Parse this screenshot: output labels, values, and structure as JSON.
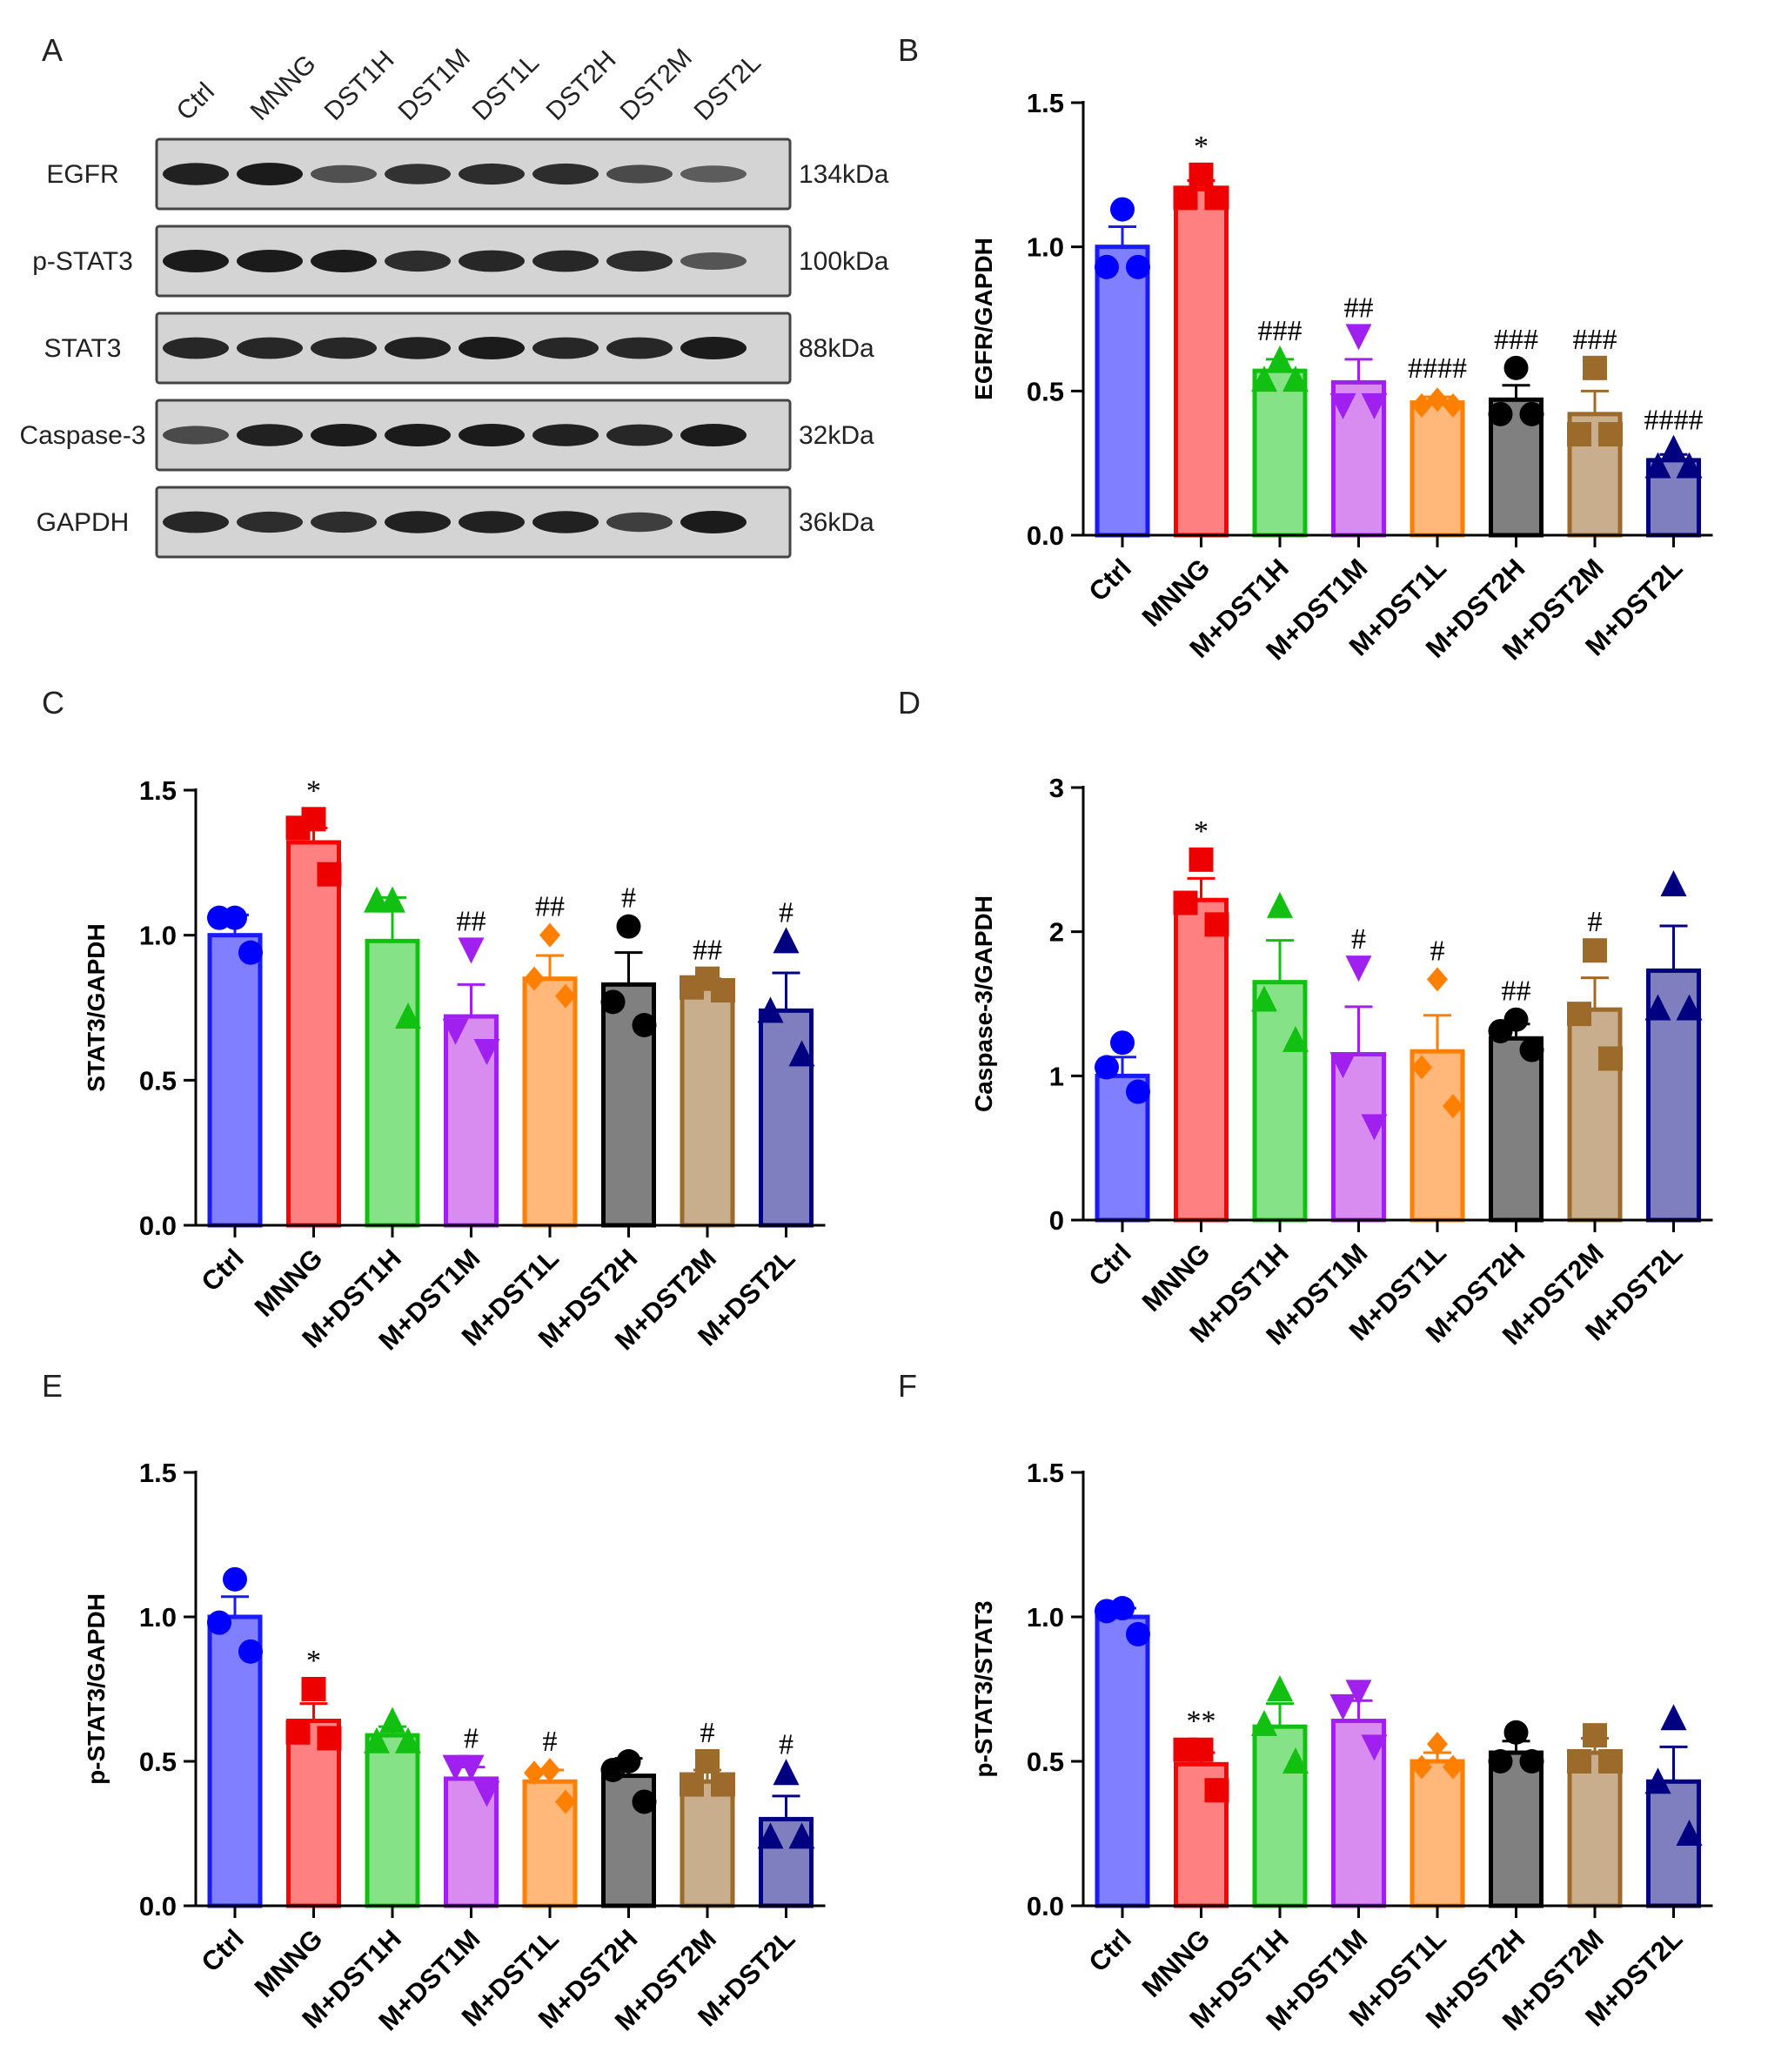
{
  "panel_labels": [
    "A",
    "B",
    "C",
    "D",
    "E",
    "F"
  ],
  "colors": {
    "Ctrl": {
      "fill": "#7f7fff",
      "edge": "#1a1aff",
      "point": "#0000ff"
    },
    "MNNG": {
      "fill": "#ff8080",
      "edge": "#ff0000",
      "point": "#ee0000"
    },
    "M+DST1H": {
      "fill": "#86e286",
      "edge": "#12c012",
      "point": "#12c012"
    },
    "M+DST1M": {
      "fill": "#d98cf0",
      "edge": "#a020f0",
      "point": "#a020f0"
    },
    "M+DST1L": {
      "fill": "#ffb87a",
      "edge": "#ff7f00",
      "point": "#ff7f00"
    },
    "M+DST2H": {
      "fill": "#808080",
      "edge": "#000000",
      "point": "#000000"
    },
    "M+DST2M": {
      "fill": "#c8ae8c",
      "edge": "#9c6a2b",
      "point": "#9c6a2b"
    },
    "M+DST2L": {
      "fill": "#7f7fbf",
      "edge": "#000080",
      "point": "#000080"
    }
  },
  "blot": {
    "lanes": [
      "Ctrl",
      "MNNG",
      "DST1H",
      "DST1M",
      "DST1L",
      "DST2H",
      "DST2M",
      "DST2L"
    ],
    "rows": [
      {
        "name": "EGFR",
        "size": "134kDa"
      },
      {
        "name": "p-STAT3",
        "size": "100kDa"
      },
      {
        "name": "STAT3",
        "size": "88kDa"
      },
      {
        "name": "Caspase-3",
        "size": "32kDa"
      },
      {
        "name": "GAPDH",
        "size": "36kDa"
      }
    ]
  },
  "chart_data": [
    {
      "panel": "B",
      "type": "bar",
      "categories": [
        "Ctrl",
        "MNNG",
        "M+DST1H",
        "M+DST1M",
        "M+DST1L",
        "M+DST2H",
        "M+DST2M",
        "M+DST2L"
      ],
      "markers": [
        "circle",
        "square",
        "triangle",
        "triangle-down",
        "diamond",
        "circle",
        "square",
        "triangle"
      ],
      "values": [
        1.0,
        1.2,
        0.57,
        0.53,
        0.46,
        0.47,
        0.42,
        0.26
      ],
      "sem": [
        0.07,
        0.03,
        0.04,
        0.08,
        0.02,
        0.05,
        0.08,
        0.02
      ],
      "points": [
        [
          1.13,
          0.93,
          0.93
        ],
        [
          1.25,
          1.17,
          1.17
        ],
        [
          0.61,
          0.54,
          0.54
        ],
        [
          0.69,
          0.45,
          0.45
        ],
        [
          0.47,
          0.45,
          0.45
        ],
        [
          0.58,
          0.42,
          0.42
        ],
        [
          0.58,
          0.35,
          0.35
        ],
        [
          0.3,
          0.24,
          0.24
        ]
      ],
      "sig": [
        "",
        "*",
        "###",
        "##",
        "####",
        "###",
        "###",
        "####"
      ],
      "ylabel": "EGFR/GAPDH",
      "ylim": [
        0,
        1.5
      ],
      "yticks": [
        0.0,
        0.5,
        1.0,
        1.5
      ],
      "ytick_labels": [
        "0.0",
        "0.5",
        "1.0",
        "1.5"
      ]
    },
    {
      "panel": "C",
      "type": "bar",
      "categories": [
        "Ctrl",
        "MNNG",
        "M+DST1H",
        "M+DST1M",
        "M+DST1L",
        "M+DST2H",
        "M+DST2M",
        "M+DST2L"
      ],
      "markers": [
        "circle",
        "square",
        "triangle",
        "triangle-down",
        "diamond",
        "circle",
        "square",
        "triangle"
      ],
      "values": [
        1.0,
        1.32,
        0.98,
        0.72,
        0.85,
        0.83,
        0.82,
        0.74
      ],
      "sem": [
        0.07,
        0.05,
        0.15,
        0.11,
        0.08,
        0.11,
        0.03,
        0.13
      ],
      "points": [
        [
          1.06,
          1.06,
          0.94
        ],
        [
          1.4,
          1.37,
          1.21
        ],
        [
          1.12,
          1.12,
          0.72
        ],
        [
          0.95,
          0.67,
          0.6
        ],
        [
          1.0,
          0.85,
          0.79
        ],
        [
          1.03,
          0.77,
          0.69
        ],
        [
          0.85,
          0.82,
          0.81
        ],
        [
          0.98,
          0.74,
          0.59
        ]
      ],
      "sig": [
        "",
        "*",
        "",
        "##",
        "##",
        "#",
        "##",
        "#"
      ],
      "ylabel": "STAT3/GAPDH",
      "ylim": [
        0,
        1.5
      ],
      "yticks": [
        0.0,
        0.5,
        1.0,
        1.5
      ],
      "ytick_labels": [
        "0.0",
        "0.5",
        "1.0",
        "1.5"
      ]
    },
    {
      "panel": "D",
      "type": "bar",
      "categories": [
        "Ctrl",
        "MNNG",
        "M+DST1H",
        "M+DST1M",
        "M+DST1L",
        "M+DST2H",
        "M+DST2M",
        "M+DST2L"
      ],
      "markers": [
        "circle",
        "square",
        "triangle",
        "triangle-down",
        "diamond",
        "circle",
        "square",
        "triangle"
      ],
      "values": [
        1.0,
        2.22,
        1.65,
        1.15,
        1.17,
        1.26,
        1.46,
        1.73
      ],
      "sem": [
        0.13,
        0.15,
        0.29,
        0.33,
        0.25,
        0.1,
        0.22,
        0.31
      ],
      "points": [
        [
          1.23,
          1.06,
          0.89
        ],
        [
          2.5,
          2.2,
          2.05
        ],
        [
          2.18,
          1.53,
          1.25
        ],
        [
          1.75,
          1.08,
          0.65
        ],
        [
          1.67,
          1.06,
          0.79
        ],
        [
          1.39,
          1.31,
          1.18
        ],
        [
          1.87,
          1.43,
          1.12
        ],
        [
          2.33,
          1.47,
          1.47
        ]
      ],
      "sig": [
        "",
        "*",
        "",
        "#",
        "#",
        "##",
        "#",
        ""
      ],
      "ylabel": "Caspase-3/GAPDH",
      "ylim": [
        0,
        3
      ],
      "yticks": [
        0,
        1,
        2,
        3
      ],
      "ytick_labels": [
        "0",
        "1",
        "2",
        "3"
      ]
    },
    {
      "panel": "E",
      "type": "bar",
      "categories": [
        "Ctrl",
        "MNNG",
        "M+DST1H",
        "M+DST1M",
        "M+DST1L",
        "M+DST2H",
        "M+DST2M",
        "M+DST2L"
      ],
      "markers": [
        "circle",
        "square",
        "triangle",
        "triangle-down",
        "diamond",
        "circle",
        "square",
        "triangle"
      ],
      "values": [
        1.0,
        0.64,
        0.59,
        0.44,
        0.43,
        0.45,
        0.43,
        0.3
      ],
      "sem": [
        0.07,
        0.06,
        0.03,
        0.04,
        0.04,
        0.06,
        0.04,
        0.08
      ],
      "points": [
        [
          1.13,
          0.98,
          0.88
        ],
        [
          0.75,
          0.6,
          0.58
        ],
        [
          0.64,
          0.57,
          0.57
        ],
        [
          0.48,
          0.48,
          0.39
        ],
        [
          0.47,
          0.46,
          0.36
        ],
        [
          0.5,
          0.47,
          0.36
        ],
        [
          0.5,
          0.42,
          0.42
        ],
        [
          0.46,
          0.24,
          0.24
        ]
      ],
      "sig": [
        "",
        "*",
        "",
        "#",
        "#",
        "",
        "#",
        "#"
      ],
      "ylabel": "p-STAT3/GAPDH",
      "ylim": [
        0,
        1.5
      ],
      "yticks": [
        0.0,
        0.5,
        1.0,
        1.5
      ],
      "ytick_labels": [
        "0.0",
        "0.5",
        "1.0",
        "1.5"
      ]
    },
    {
      "panel": "F",
      "type": "bar",
      "categories": [
        "Ctrl",
        "MNNG",
        "M+DST1H",
        "M+DST1M",
        "M+DST1L",
        "M+DST2H",
        "M+DST2M",
        "M+DST2L"
      ],
      "markers": [
        "circle",
        "square",
        "triangle",
        "triangle-down",
        "diamond",
        "circle",
        "square",
        "triangle"
      ],
      "values": [
        1.0,
        0.49,
        0.62,
        0.64,
        0.5,
        0.53,
        0.53,
        0.43
      ],
      "sem": [
        0.03,
        0.04,
        0.08,
        0.07,
        0.03,
        0.04,
        0.05,
        0.12
      ],
      "points": [
        [
          1.03,
          1.02,
          0.94
        ],
        [
          0.54,
          0.54,
          0.4
        ],
        [
          0.75,
          0.63,
          0.5
        ],
        [
          0.74,
          0.69,
          0.55
        ],
        [
          0.56,
          0.48,
          0.48
        ],
        [
          0.6,
          0.5,
          0.5
        ],
        [
          0.59,
          0.5,
          0.5
        ],
        [
          0.65,
          0.43,
          0.25
        ]
      ],
      "sig": [
        "",
        "**",
        "",
        "",
        "",
        "",
        "",
        ""
      ],
      "ylabel": "p-STAT3/STAT3",
      "ylim": [
        0,
        1.5
      ],
      "yticks": [
        0.0,
        0.5,
        1.0,
        1.5
      ],
      "ytick_labels": [
        "0.0",
        "0.5",
        "1.0",
        "1.5"
      ]
    }
  ]
}
